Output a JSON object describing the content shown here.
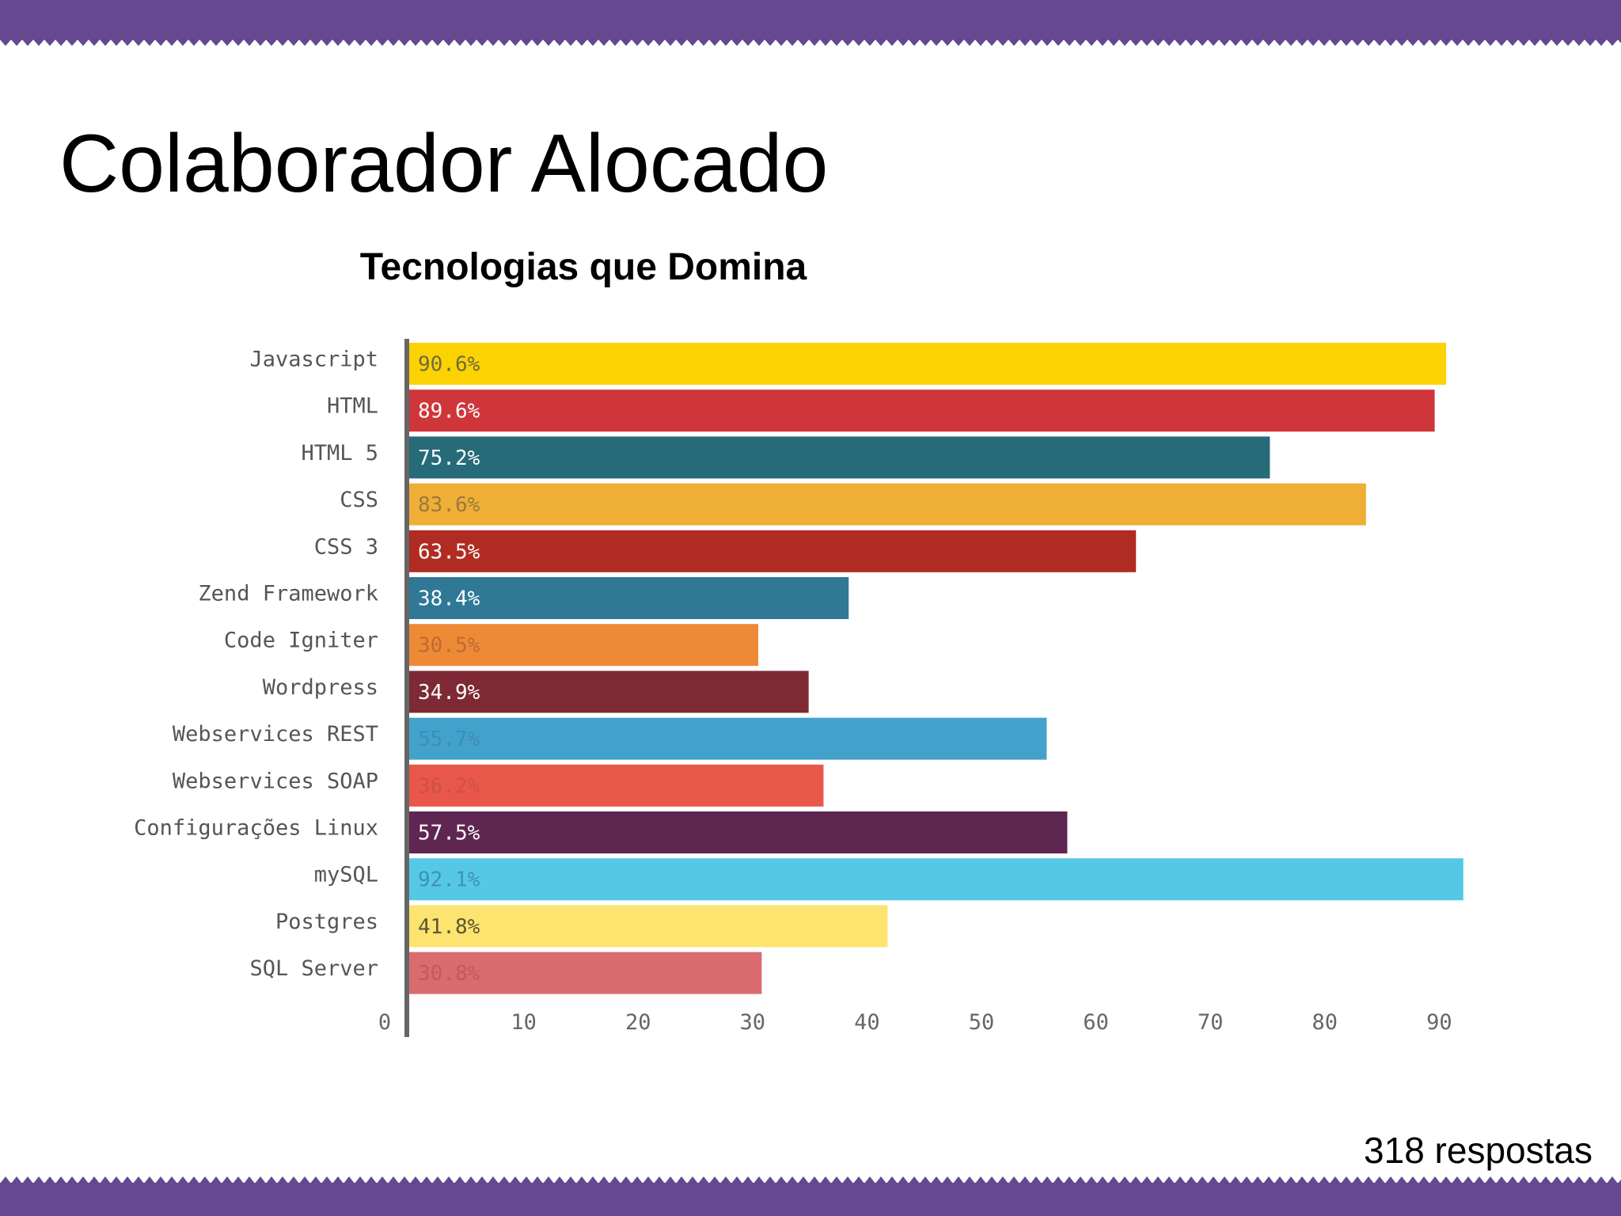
{
  "slide": {
    "title": "Colaborador Alocado",
    "footer_note": "318 respostas",
    "band_color": "#65488f"
  },
  "chart_data": {
    "type": "bar",
    "orientation": "horizontal",
    "title": "Tecnologias que Domina",
    "xlabel": "",
    "ylabel": "",
    "xlim": [
      0,
      95
    ],
    "xticks": [
      0,
      10,
      20,
      30,
      40,
      50,
      60,
      70,
      80,
      90
    ],
    "grid": false,
    "legend": "none",
    "categories": [
      "Javascript",
      "HTML",
      "HTML 5",
      "CSS",
      "CSS 3",
      "Zend Framework",
      "Code Igniter",
      "Wordpress",
      "Webservices REST",
      "Webservices SOAP",
      "Configurações Linux",
      "mySQL",
      "Postgres",
      "SQL Server"
    ],
    "values": [
      90.6,
      89.6,
      75.2,
      83.6,
      63.5,
      38.4,
      30.5,
      34.9,
      55.7,
      36.2,
      57.5,
      92.1,
      41.8,
      30.8
    ],
    "data_labels": [
      "90.6%",
      "89.6%",
      "75.2%",
      "83.6%",
      "63.5%",
      "38.4%",
      "30.5%",
      "34.9%",
      "55.7%",
      "36.2%",
      "57.5%",
      "92.1%",
      "41.8%",
      "30.8%"
    ],
    "colors": [
      "#fcd202",
      "#cf363a",
      "#276b79",
      "#efae36",
      "#b02c23",
      "#2f7896",
      "#ee8a36",
      "#7e2a35",
      "#43a2cb",
      "#e8574a",
      "#5e2650",
      "#55c8e6",
      "#fde46f",
      "#da6b6f"
    ],
    "label_colors": [
      "#6f6a40",
      "#ffffff",
      "#ffffff",
      "#9c7a3e",
      "#ffffff",
      "#ffffff",
      "#bd6a33",
      "#ffffff",
      "#3f8db3",
      "#cf5146",
      "#ffffff",
      "#3d94b0",
      "#5b5631",
      "#c35a5e"
    ]
  }
}
